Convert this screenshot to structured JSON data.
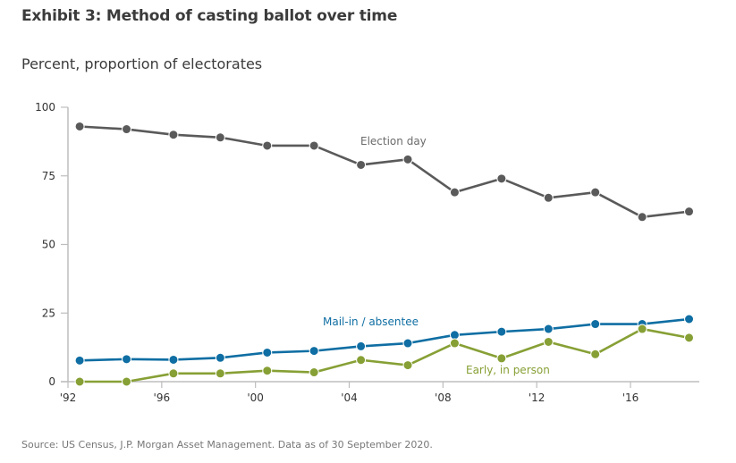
{
  "header": {
    "title": "Exhibit 3: Method of casting ballot over time",
    "subtitle": "Percent, proportion of electorates"
  },
  "footer": {
    "source": "Source: US Census, J.P. Morgan Asset Management. Data as of 30 September 2020."
  },
  "chart_data": {
    "type": "line",
    "title": "Exhibit 3: Method of casting ballot over time",
    "subtitle": "Percent, proportion of electorates",
    "xlabel": "",
    "ylabel": "Percent",
    "ylim": [
      0,
      100
    ],
    "xlim": [
      1992,
      2019
    ],
    "yticks": [
      0,
      25,
      50,
      75,
      100
    ],
    "xticks": [
      {
        "value": 1992,
        "label": "'92"
      },
      {
        "value": 1996,
        "label": "'96"
      },
      {
        "value": 2000,
        "label": "'00"
      },
      {
        "value": 2004,
        "label": "'04"
      },
      {
        "value": 2008,
        "label": "'08"
      },
      {
        "value": 2012,
        "label": "'12"
      },
      {
        "value": 2016,
        "label": "'16"
      }
    ],
    "x": [
      1992.5,
      1994.5,
      1996.5,
      1998.5,
      2000.5,
      2002.5,
      2004.5,
      2006.5,
      2008.5,
      2010.5,
      2012.5,
      2014.5,
      2016.5,
      2018.5
    ],
    "grid": false,
    "legend": "inline labels",
    "series": [
      {
        "name": "Election day",
        "color": "#5a5a5a",
        "values": [
          93,
          92,
          90,
          89,
          86,
          86,
          79,
          81,
          69,
          74,
          67,
          69,
          60,
          62
        ]
      },
      {
        "name": "Mail-in / absentee",
        "color": "#0f6ea3",
        "values": [
          7.7,
          8.2,
          8.0,
          8.7,
          10.6,
          11.2,
          12.9,
          14.0,
          17.0,
          18.2,
          19.2,
          21.0,
          21.0,
          22.8
        ]
      },
      {
        "name": "Early, in person",
        "color": "#87a035",
        "values": [
          0,
          0,
          3.0,
          3.0,
          4.0,
          3.4,
          7.9,
          6.0,
          14.0,
          8.5,
          14.5,
          10.0,
          19.2,
          16.0
        ]
      }
    ]
  }
}
